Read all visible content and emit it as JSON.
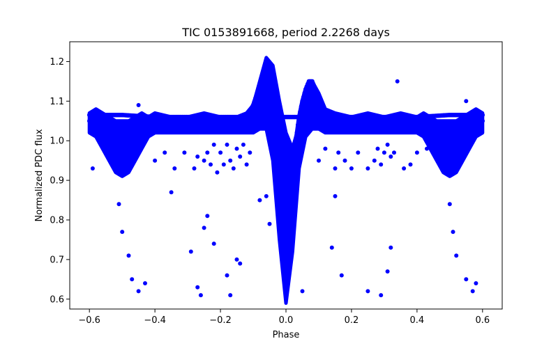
{
  "chart_data": {
    "type": "scatter",
    "title": "TIC 0153891668, period 2.2268 days",
    "xlabel": "Phase",
    "ylabel": "Normalized PDC flux",
    "xlim": [
      -0.66,
      0.66
    ],
    "ylim": [
      0.575,
      1.25
    ],
    "x_ticks": [
      -0.6,
      -0.4,
      -0.2,
      0.0,
      0.2,
      0.4,
      0.6
    ],
    "x_tick_labels": [
      "−0.6",
      "−0.4",
      "−0.2",
      "0.0",
      "0.2",
      "0.4",
      "0.6"
    ],
    "y_ticks": [
      0.6,
      0.7,
      0.8,
      0.9,
      1.0,
      1.1,
      1.2
    ],
    "y_tick_labels": [
      "0.6",
      "0.7",
      "0.8",
      "0.9",
      "1.0",
      "1.1",
      "1.2"
    ],
    "grid": false,
    "marker_color": "#0000ff",
    "series": [
      {
        "name": "lightcurve_envelope",
        "x": [
          -0.6,
          -0.58,
          -0.56,
          -0.54,
          -0.52,
          -0.5,
          -0.48,
          -0.46,
          -0.44,
          -0.42,
          -0.4,
          -0.35,
          -0.3,
          -0.25,
          -0.2,
          -0.15,
          -0.12,
          -0.1,
          -0.08,
          -0.06,
          -0.04,
          -0.02,
          0.0,
          0.02,
          0.04,
          0.06,
          0.08,
          0.1,
          0.12,
          0.15,
          0.2,
          0.25,
          0.3,
          0.35,
          0.4,
          0.42,
          0.44,
          0.46,
          0.48,
          0.5,
          0.52,
          0.54,
          0.56,
          0.58,
          0.6
        ],
        "upper": [
          1.07,
          1.08,
          1.07,
          1.06,
          1.05,
          1.05,
          1.05,
          1.06,
          1.07,
          1.06,
          1.07,
          1.06,
          1.06,
          1.07,
          1.06,
          1.06,
          1.07,
          1.09,
          1.15,
          1.21,
          1.19,
          1.1,
          1.02,
          0.98,
          1.04,
          1.11,
          1.15,
          1.12,
          1.08,
          1.07,
          1.06,
          1.07,
          1.06,
          1.07,
          1.06,
          1.07,
          1.06,
          1.05,
          1.05,
          1.05,
          1.05,
          1.06,
          1.07,
          1.08,
          1.07
        ],
        "lower": [
          1.02,
          1.01,
          0.98,
          0.95,
          0.92,
          0.91,
          0.92,
          0.95,
          0.98,
          1.01,
          1.02,
          1.02,
          1.02,
          1.02,
          1.02,
          1.02,
          1.02,
          1.02,
          1.03,
          1.03,
          0.95,
          0.75,
          0.59,
          0.72,
          0.93,
          1.01,
          1.03,
          1.03,
          1.02,
          1.02,
          1.02,
          1.02,
          1.02,
          1.02,
          1.02,
          1.01,
          0.98,
          0.95,
          0.92,
          0.91,
          0.92,
          0.95,
          0.98,
          1.01,
          1.02
        ]
      },
      {
        "name": "main_band",
        "x": [
          -0.6,
          -0.58,
          -0.56,
          -0.54,
          -0.52,
          -0.5,
          -0.48,
          -0.46,
          -0.44,
          -0.42,
          -0.4,
          -0.35,
          -0.3,
          -0.25,
          -0.2,
          -0.15,
          -0.1,
          -0.06,
          -0.04,
          -0.02,
          0.0,
          0.02,
          0.04,
          0.06,
          0.1,
          0.15,
          0.2,
          0.25,
          0.3,
          0.35,
          0.4,
          0.42,
          0.44,
          0.46,
          0.48,
          0.5,
          0.52,
          0.54,
          0.56,
          0.58,
          0.6
        ],
        "y": [
          1.05,
          1.03,
          1.0,
          0.97,
          0.94,
          0.93,
          0.94,
          0.97,
          1.0,
          1.03,
          1.04,
          1.05,
          1.05,
          1.05,
          1.05,
          1.05,
          1.05,
          1.05,
          0.98,
          0.8,
          0.62,
          0.78,
          0.98,
          1.04,
          1.05,
          1.05,
          1.05,
          1.05,
          1.05,
          1.05,
          1.04,
          1.03,
          1.0,
          0.97,
          0.94,
          0.93,
          0.94,
          0.97,
          1.0,
          1.03,
          1.05
        ]
      },
      {
        "name": "bright_bump_band",
        "x": [
          -0.14,
          -0.12,
          -0.1,
          -0.08,
          -0.07,
          -0.06,
          -0.05,
          -0.04,
          -0.03,
          -0.02,
          -0.01,
          0.0,
          0.01,
          0.02,
          0.03,
          0.04,
          0.05,
          0.06,
          0.07,
          0.08,
          0.09,
          0.1,
          0.12,
          0.14
        ],
        "y": [
          1.05,
          1.06,
          1.09,
          1.14,
          1.17,
          1.19,
          1.18,
          1.14,
          1.07,
          0.98,
          0.92,
          0.89,
          0.9,
          0.95,
          1.0,
          1.06,
          1.1,
          1.13,
          1.15,
          1.15,
          1.13,
          1.1,
          1.07,
          1.06
        ]
      },
      {
        "name": "flat_band",
        "x": [
          -0.6,
          -0.5,
          -0.4,
          -0.3,
          -0.2,
          -0.1,
          0.0,
          0.1,
          0.2,
          0.3,
          0.4,
          0.5,
          0.6
        ],
        "y": [
          1.065,
          1.065,
          1.06,
          1.06,
          1.06,
          1.06,
          1.06,
          1.06,
          1.06,
          1.06,
          1.06,
          1.065,
          1.065
        ]
      },
      {
        "name": "outliers",
        "x": [
          -0.59,
          -0.51,
          -0.5,
          -0.48,
          -0.47,
          -0.45,
          -0.43,
          -0.4,
          -0.37,
          -0.34,
          -0.31,
          -0.28,
          -0.27,
          -0.25,
          -0.24,
          -0.23,
          -0.22,
          -0.21,
          -0.2,
          -0.19,
          -0.18,
          -0.17,
          -0.16,
          -0.15,
          -0.14,
          -0.13,
          -0.12,
          -0.11,
          -0.08,
          -0.06,
          0.05,
          0.1,
          0.12,
          0.15,
          0.16,
          0.18,
          0.2,
          0.22,
          0.25,
          0.27,
          0.28,
          0.29,
          0.3,
          0.31,
          0.32,
          0.33,
          0.34,
          0.36,
          0.38,
          0.4,
          0.43,
          0.5,
          0.51,
          0.52,
          0.55,
          0.57,
          0.58,
          -0.29,
          -0.27,
          -0.26,
          -0.25,
          -0.24,
          -0.22,
          -0.18,
          -0.17,
          -0.15,
          -0.14,
          0.14,
          0.15,
          0.17,
          0.25,
          0.29,
          0.31,
          0.32,
          -0.55,
          -0.45,
          -0.35,
          -0.05,
          0.45,
          0.55
        ],
        "y": [
          0.93,
          0.84,
          0.77,
          0.71,
          0.65,
          0.62,
          0.64,
          0.95,
          0.97,
          0.93,
          0.97,
          0.93,
          0.96,
          0.95,
          0.97,
          0.94,
          0.99,
          0.92,
          0.97,
          0.94,
          0.99,
          0.95,
          0.93,
          0.98,
          0.96,
          0.99,
          0.94,
          0.97,
          0.85,
          0.86,
          0.62,
          0.95,
          0.98,
          0.93,
          0.97,
          0.95,
          0.93,
          0.97,
          0.93,
          0.95,
          0.98,
          0.94,
          0.97,
          0.99,
          0.96,
          0.97,
          1.15,
          0.93,
          0.94,
          0.97,
          0.98,
          0.84,
          0.77,
          0.71,
          0.65,
          0.62,
          0.64,
          0.72,
          0.63,
          0.61,
          0.78,
          0.81,
          0.74,
          0.66,
          0.61,
          0.7,
          0.69,
          0.73,
          0.86,
          0.66,
          0.62,
          0.61,
          0.67,
          0.73,
          1.0,
          1.09,
          0.87,
          0.79,
          1.0,
          1.1
        ]
      }
    ]
  }
}
